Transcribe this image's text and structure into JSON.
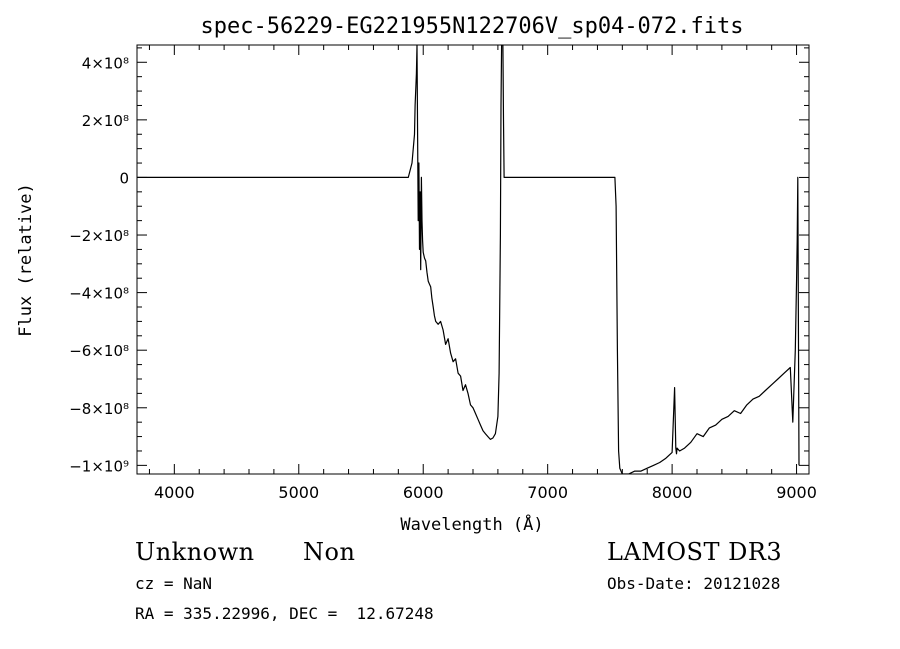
{
  "chart_data": {
    "type": "line",
    "title": "spec-56229-EG221955N122706V_sp04-072.fits",
    "xlabel": "Wavelength (Å)",
    "ylabel": "Flux (relative)",
    "xlim": [
      3700,
      9100
    ],
    "ylim": [
      -1030000000.0,
      460000000.0
    ],
    "xticks": [
      {
        "value": 4000,
        "label": "4000"
      },
      {
        "value": 5000,
        "label": "5000"
      },
      {
        "value": 6000,
        "label": "6000"
      },
      {
        "value": 7000,
        "label": "7000"
      },
      {
        "value": 8000,
        "label": "8000"
      },
      {
        "value": 9000,
        "label": "9000"
      }
    ],
    "yticks": [
      {
        "value": 400000000.0,
        "label": "4×10⁸"
      },
      {
        "value": 200000000.0,
        "label": "2×10⁸"
      },
      {
        "value": 0,
        "label": "0"
      },
      {
        "value": -200000000.0,
        "label": "−2×10⁸"
      },
      {
        "value": -400000000.0,
        "label": "−4×10⁸"
      },
      {
        "value": -600000000.0,
        "label": "−6×10⁸"
      },
      {
        "value": -800000000.0,
        "label": "−8×10⁸"
      },
      {
        "value": -1000000000.0,
        "label": "−1×10⁹"
      }
    ],
    "grid": false,
    "series": [
      {
        "x": [
          3700,
          4500,
          5500,
          5880,
          5910,
          5930,
          5935,
          5945,
          5950,
          5955,
          5960,
          5965,
          5970,
          5975,
          5980,
          5985,
          5990,
          5995,
          6000,
          6010,
          6020,
          6030,
          6040,
          6050,
          6060,
          6070,
          6080,
          6090,
          6100,
          6120,
          6140,
          6160,
          6180,
          6200,
          6220,
          6240,
          6260,
          6280,
          6300,
          6320,
          6340,
          6360,
          6380,
          6400,
          6420,
          6440,
          6460,
          6480,
          6500,
          6520,
          6540,
          6560,
          6580,
          6600,
          6610,
          6620,
          6625,
          6630,
          6635,
          6640,
          6645,
          6650,
          6660,
          6700,
          7000,
          7400,
          7540,
          7550,
          7560,
          7570,
          7580,
          7600,
          7650,
          7700,
          7750,
          7800,
          7850,
          7900,
          7950,
          8000,
          8020,
          8030,
          8035,
          8040,
          8060,
          8100,
          8150,
          8200,
          8250,
          8300,
          8350,
          8400,
          8450,
          8500,
          8550,
          8600,
          8650,
          8700,
          8750,
          8800,
          8850,
          8900,
          8950,
          8970,
          8990,
          9000,
          9005,
          9010,
          9020
        ],
        "y": [
          0,
          0,
          0,
          0,
          50000000.0,
          150000000.0,
          250000000.0,
          360000000.0,
          460000000.0,
          150000000.0,
          -150000000.0,
          50000000.0,
          -250000000.0,
          -50000000.0,
          -320000000.0,
          0,
          -150000000.0,
          -220000000.0,
          -260000000.0,
          -280000000.0,
          -290000000.0,
          -330000000.0,
          -360000000.0,
          -370000000.0,
          -380000000.0,
          -420000000.0,
          -450000000.0,
          -480000000.0,
          -500000000.0,
          -510000000.0,
          -500000000.0,
          -530000000.0,
          -580000000.0,
          -560000000.0,
          -610000000.0,
          -640000000.0,
          -630000000.0,
          -680000000.0,
          -690000000.0,
          -740000000.0,
          -720000000.0,
          -750000000.0,
          -790000000.0,
          -800000000.0,
          -820000000.0,
          -840000000.0,
          -860000000.0,
          -880000000.0,
          -890000000.0,
          -900000000.0,
          -910000000.0,
          -905000000.0,
          -890000000.0,
          -830000000.0,
          -680000000.0,
          -200000000.0,
          250000000.0,
          460000000.0,
          460000000.0,
          460000000.0,
          200000000.0,
          0,
          0,
          0,
          0,
          0,
          0,
          -100000000.0,
          -600000000.0,
          -950000000.0,
          -1010000000.0,
          -1030000000.0,
          -1030000000.0,
          -1020000000.0,
          -1020000000.0,
          -1010000000.0,
          -1000000000.0,
          -990000000.0,
          -975000000.0,
          -955000000.0,
          -730000000.0,
          -940000000.0,
          -960000000.0,
          -940000000.0,
          -950000000.0,
          -940000000.0,
          -920000000.0,
          -890000000.0,
          -900000000.0,
          -870000000.0,
          -860000000.0,
          -840000000.0,
          -830000000.0,
          -810000000.0,
          -820000000.0,
          -790000000.0,
          -770000000.0,
          -760000000.0,
          -740000000.0,
          -720000000.0,
          -700000000.0,
          -680000000.0,
          -660000000.0,
          -850000000.0,
          -600000000.0,
          -350000000.0,
          -220000000.0,
          0,
          -1000000000.0
        ]
      }
    ]
  },
  "footer": {
    "object_type": "Unknown",
    "subclass": "Non",
    "survey": "LAMOST DR3",
    "cz": "cz = NaN",
    "obs_date": "Obs-Date: 20121028",
    "coords": "RA = 335.22996, DEC =  12.67248"
  }
}
